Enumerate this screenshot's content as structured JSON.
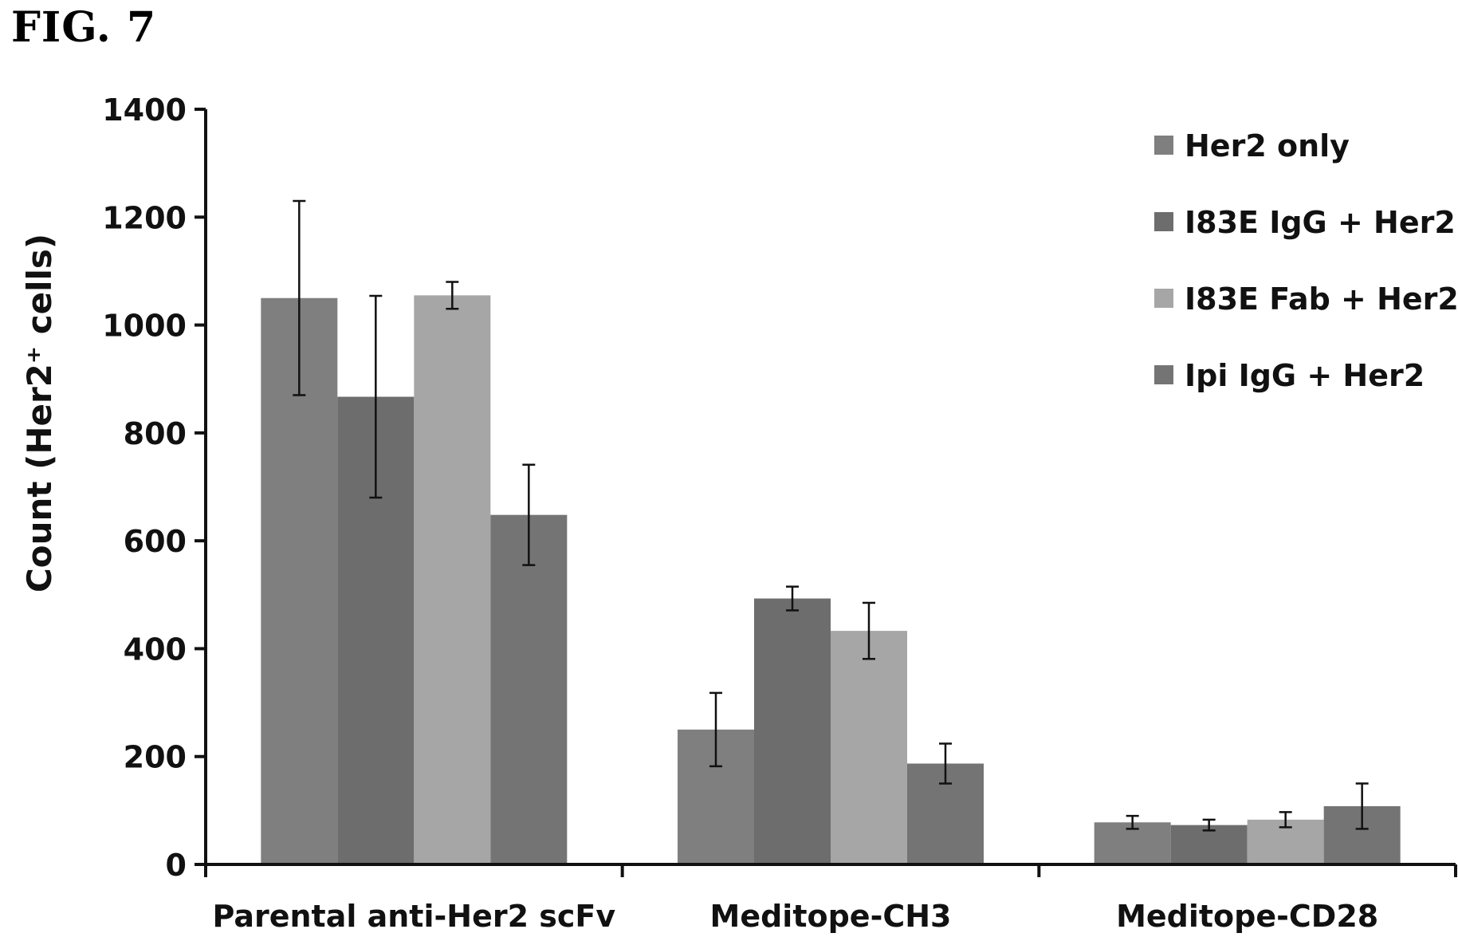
{
  "figure": {
    "label": "FIG. 7"
  },
  "chart_data": {
    "type": "bar",
    "categories": [
      "Parental anti-Her2 scFv",
      "Meditope-CH3",
      "Meditope-CD28"
    ],
    "series": [
      {
        "name": "Her2 only",
        "values": [
          1050,
          250,
          78
        ],
        "errors": [
          180,
          68,
          12
        ],
        "color": "#7f7f7f"
      },
      {
        "name": "I83E IgG + Her2",
        "values": [
          867,
          493,
          73
        ],
        "errors": [
          187,
          22,
          10
        ],
        "color": "#6d6d6d"
      },
      {
        "name": "I83E Fab + Her2",
        "values": [
          1055,
          433,
          83
        ],
        "errors": [
          25,
          52,
          14
        ],
        "color": "#a6a6a6"
      },
      {
        "name": "Ipi IgG + Her2",
        "values": [
          648,
          187,
          108
        ],
        "errors": [
          93,
          37,
          42
        ],
        "color": "#747474"
      }
    ],
    "title": "",
    "xlabel": "",
    "ylabel": "Count (Her2⁺ cells)",
    "ylim": [
      0,
      1400
    ],
    "yticks": [
      0,
      200,
      400,
      600,
      800,
      1000,
      1200,
      1400
    ],
    "grid": false,
    "legend_position": "top-right"
  }
}
